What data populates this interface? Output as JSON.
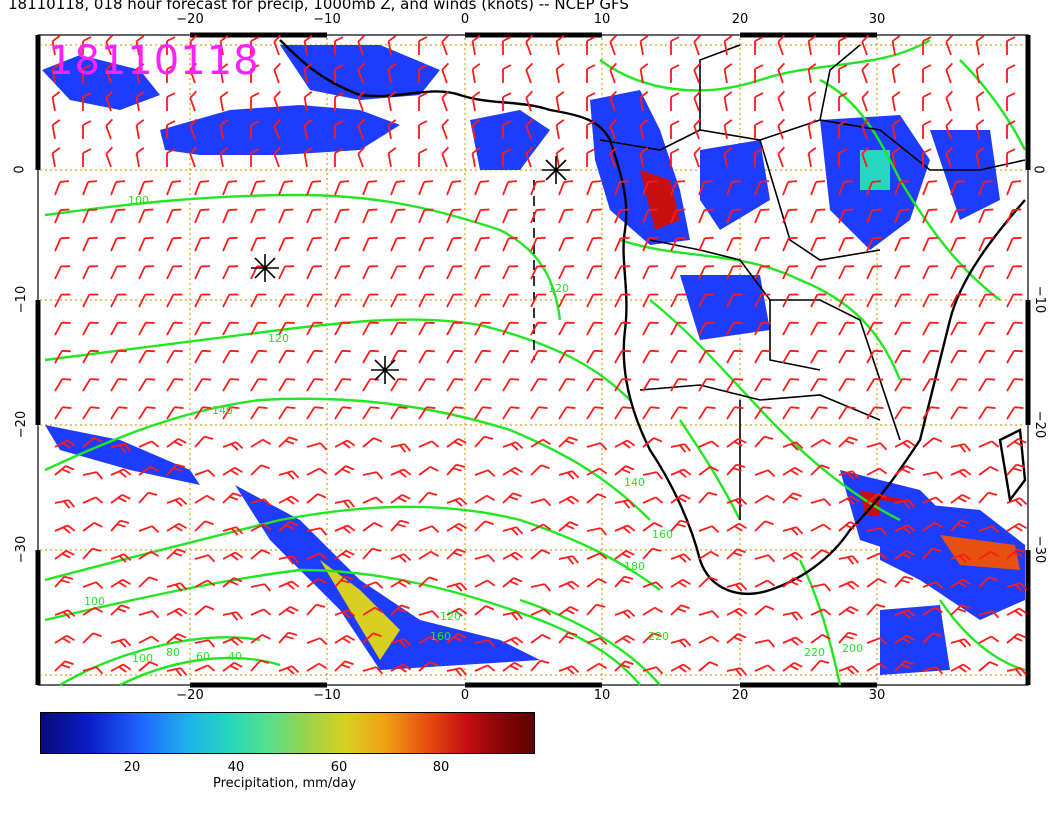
{
  "title": "18110118, 018 hour forecast for precip, 1000mb Z, and winds (knots) -- NCEP GFS",
  "stamp": "18110118",
  "axes": {
    "lon_ticks": [
      "−20",
      "−10",
      "0",
      "10",
      "20",
      "30"
    ],
    "lat_ticks": [
      "0",
      "−10",
      "−20",
      "−30"
    ]
  },
  "contour_labels": [
    "100",
    "120",
    "140",
    "120",
    "140",
    "160",
    "180",
    "220",
    "220",
    "200",
    "100",
    "80",
    "60",
    "40",
    "120",
    "160",
    "100"
  ],
  "colorbar": {
    "ticks": [
      "20",
      "40",
      "60",
      "80"
    ],
    "label": "Precipitation, mm/day"
  },
  "colors": {
    "precip_light": "#1e3cff",
    "contour": "#22e622",
    "barb": "#ff1a1a",
    "stamp": "#ff20ff",
    "grid": "#d4a017"
  },
  "markers": [
    "asterisk",
    "asterisk",
    "asterisk"
  ]
}
